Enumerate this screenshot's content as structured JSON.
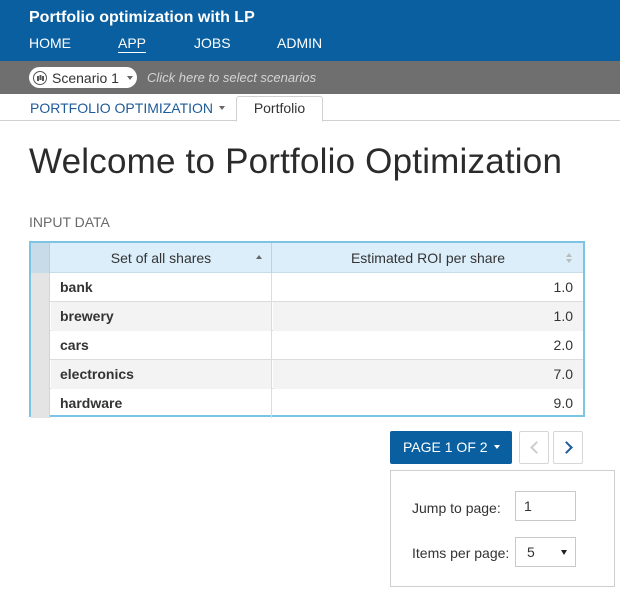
{
  "app": {
    "title": "Portfolio optimization with LP"
  },
  "nav": [
    {
      "label": "HOME",
      "active": false
    },
    {
      "label": "APP",
      "active": true
    },
    {
      "label": "JOBS",
      "active": false
    },
    {
      "label": "ADMIN",
      "active": false
    }
  ],
  "scenario": {
    "name": "Scenario 1",
    "hint": "Click here to select scenarios",
    "icon": "scenario-chart-icon"
  },
  "tabs": {
    "dropdown_label": "PORTFOLIO OPTIMIZATION",
    "active_tab": "Portfolio"
  },
  "page": {
    "title": "Welcome to Portfolio Optimization",
    "section": "INPUT DATA"
  },
  "table": {
    "columns": [
      "Set of all shares",
      "Estimated ROI per share"
    ],
    "rows": [
      {
        "name": "bank",
        "roi": "1.0"
      },
      {
        "name": "brewery",
        "roi": "1.0"
      },
      {
        "name": "cars",
        "roi": "2.0"
      },
      {
        "name": "electronics",
        "roi": "7.0"
      },
      {
        "name": "hardware",
        "roi": "9.0"
      }
    ]
  },
  "pager": {
    "label": "PAGE 1 OF 2",
    "jump_label": "Jump to page:",
    "jump_value": "1",
    "items_label": "Items per page:",
    "items_value": "5"
  },
  "colors": {
    "brand": "#0a5fa0",
    "grid_border": "#7cc3e4",
    "link": "#1e5b98"
  }
}
